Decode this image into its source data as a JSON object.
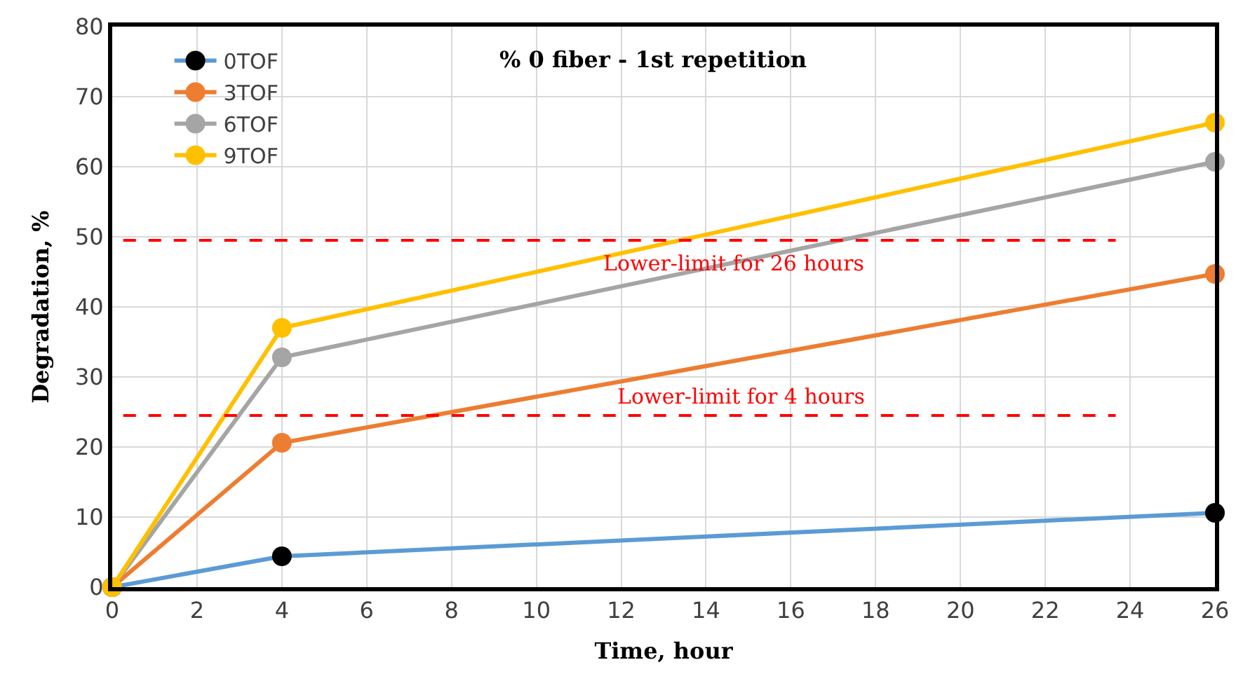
{
  "chart_data": {
    "type": "line",
    "title": "% 0 fiber - 1st repetition",
    "xlabel": "Time, hour",
    "ylabel": "Degradation, %",
    "x": [
      0,
      4,
      26
    ],
    "series": [
      {
        "name": "0TOF",
        "color": "#5b9bd5",
        "colors": [
          "#000000",
          "#000000",
          "#000000"
        ],
        "values": [
          0,
          4.4,
          10.6
        ]
      },
      {
        "name": "3TOF",
        "color": "#ed7d31",
        "values": [
          0,
          20.6,
          44.7
        ]
      },
      {
        "name": "6TOF",
        "color": "#a5a5a5",
        "values": [
          0,
          32.8,
          60.7
        ]
      },
      {
        "name": "9TOF",
        "color": "#ffc000",
        "values": [
          0,
          37.0,
          66.3
        ]
      }
    ],
    "ref_lines": [
      {
        "axis": "y",
        "value": 49.5,
        "label": "Lower-limit for 26 hours",
        "color": "#ff0000",
        "line_style": "dashed"
      },
      {
        "axis": "y",
        "value": 24.5,
        "label": "Lower-limit for 4 hours",
        "color": "#ff0000",
        "line_style": "dashed"
      }
    ],
    "xlim": [
      0,
      26
    ],
    "xticks": [
      0,
      2,
      4,
      6,
      8,
      10,
      12,
      14,
      16,
      18,
      20,
      22,
      24,
      26
    ],
    "ylim": [
      0,
      80
    ],
    "yticks": [
      0,
      10,
      20,
      30,
      40,
      50,
      60,
      70,
      80
    ],
    "grid": true,
    "legend": "top left",
    "marker": "circle",
    "line_style": "solid"
  }
}
